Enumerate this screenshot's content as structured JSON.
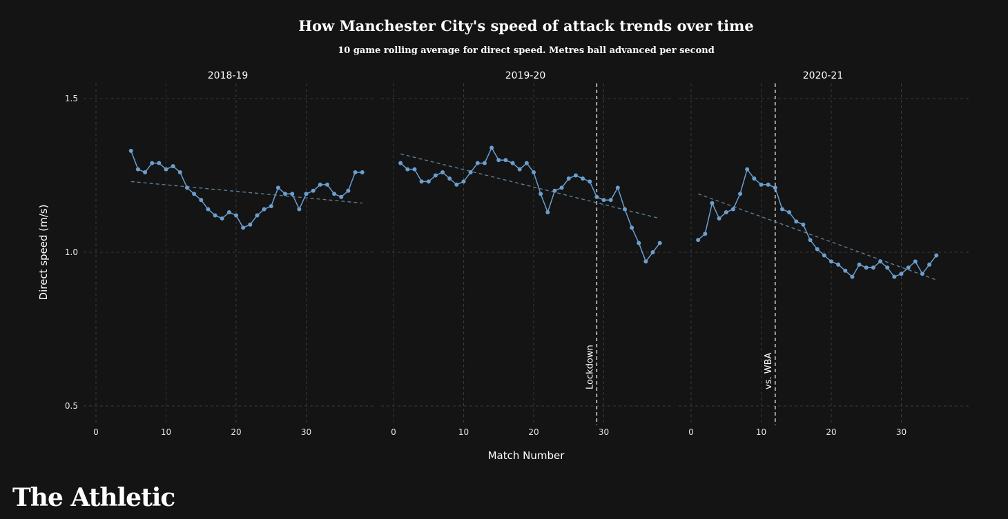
{
  "title": "How Manchester City's speed of attack trends over time",
  "subtitle": "10 game rolling average for direct speed. Metres ball advanced per second",
  "brand": "The Athletic",
  "colors": {
    "background": "#141414",
    "series": "#6a9fcf",
    "trend": "#5f7d93",
    "annotation": "#d9d9d9"
  },
  "chart_data": {
    "type": "line",
    "xlabel": "Match Number",
    "ylabel": "Direct speed (m/s)",
    "ylim": [
      0.5,
      1.5
    ],
    "yticks": [
      0.5,
      1.0,
      1.5
    ],
    "ytick_labels": [
      "0.5",
      "1.0",
      "1.5"
    ],
    "xlim": [
      0,
      38
    ],
    "xticks": [
      0,
      10,
      20,
      30
    ],
    "xtick_labels": [
      "0",
      "10",
      "20",
      "30"
    ],
    "grid": true,
    "legend": "none",
    "panels": [
      {
        "label": "2018-19",
        "x": [
          5,
          6,
          7,
          8,
          9,
          10,
          11,
          12,
          13,
          14,
          15,
          16,
          17,
          18,
          19,
          20,
          21,
          22,
          23,
          24,
          25,
          26,
          27,
          28,
          29,
          30,
          31,
          32,
          33,
          34,
          35,
          36,
          37,
          38
        ],
        "values": [
          1.33,
          1.27,
          1.26,
          1.29,
          1.29,
          1.27,
          1.28,
          1.26,
          1.21,
          1.19,
          1.17,
          1.14,
          1.12,
          1.11,
          1.13,
          1.12,
          1.08,
          1.09,
          1.12,
          1.14,
          1.15,
          1.21,
          1.19,
          1.19,
          1.14,
          1.19,
          1.2,
          1.22,
          1.22,
          1.19,
          1.18,
          1.2,
          1.26,
          1.26
        ],
        "trend": [
          [
            5,
            1.23
          ],
          [
            38,
            1.16
          ]
        ],
        "annotation": null
      },
      {
        "label": "2019-20",
        "x": [
          1,
          2,
          3,
          4,
          5,
          6,
          7,
          8,
          9,
          10,
          11,
          12,
          13,
          14,
          15,
          16,
          17,
          18,
          19,
          20,
          21,
          22,
          23,
          24,
          25,
          26,
          27,
          28,
          29,
          30,
          31,
          32,
          33,
          34,
          35,
          36,
          37,
          38
        ],
        "values": [
          1.29,
          1.27,
          1.27,
          1.23,
          1.23,
          1.25,
          1.26,
          1.24,
          1.22,
          1.23,
          1.26,
          1.29,
          1.29,
          1.34,
          1.3,
          1.3,
          1.29,
          1.27,
          1.29,
          1.26,
          1.19,
          1.13,
          1.2,
          1.21,
          1.24,
          1.25,
          1.24,
          1.23,
          1.18,
          1.17,
          1.17,
          1.21,
          1.14,
          1.08,
          1.03,
          0.97,
          1.0,
          1.03
        ],
        "trend": [
          [
            1,
            1.32
          ],
          [
            38,
            1.11
          ]
        ],
        "annotation": {
          "x": 29,
          "label": "Lockdown"
        }
      },
      {
        "label": "2020-21",
        "x": [
          1,
          2,
          3,
          4,
          5,
          6,
          7,
          8,
          9,
          10,
          11,
          12,
          13,
          14,
          15,
          16,
          17,
          18,
          19,
          20,
          21,
          22,
          23,
          24,
          25,
          26,
          27,
          28,
          29,
          30,
          31,
          32,
          33,
          34,
          35
        ],
        "values": [
          1.04,
          1.06,
          1.16,
          1.11,
          1.13,
          1.14,
          1.19,
          1.27,
          1.24,
          1.22,
          1.22,
          1.21,
          1.14,
          1.13,
          1.1,
          1.09,
          1.04,
          1.01,
          0.99,
          0.97,
          0.96,
          0.94,
          0.92,
          0.96,
          0.95,
          0.95,
          0.97,
          0.95,
          0.92,
          0.93,
          0.95,
          0.97,
          0.93,
          0.96,
          0.99
        ],
        "trend": [
          [
            1,
            1.19
          ],
          [
            35,
            0.91
          ]
        ],
        "annotation": {
          "x": 12,
          "label": "vs. WBA"
        }
      }
    ]
  }
}
